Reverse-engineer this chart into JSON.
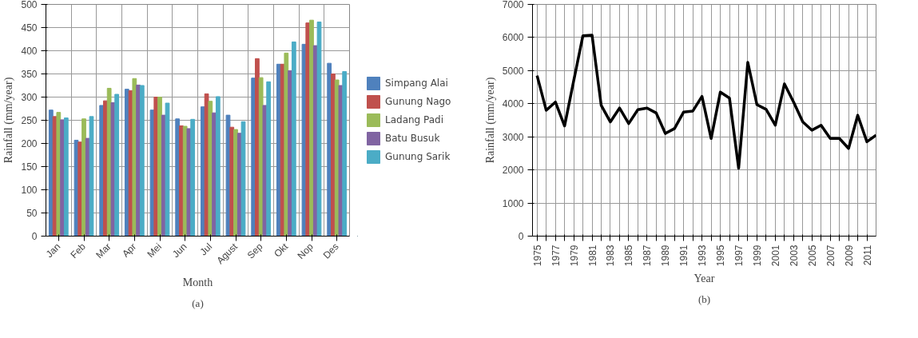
{
  "chart_data": [
    {
      "type": "bar",
      "xlabel": "Month",
      "ylabel": "Rainfall (mm/year)",
      "annotations": [
        "(a)"
      ],
      "categories": [
        "Jan",
        "Feb",
        "Mar",
        "Apr",
        "Mei",
        "Jun",
        "Jul",
        "Agust",
        "Sep",
        "Okt",
        "Nop",
        "Des"
      ],
      "series": [
        {
          "name": "Simpang Alai",
          "color": "#4f81bd",
          "values": [
            272,
            207,
            282,
            317,
            272,
            253,
            279,
            261,
            341,
            371,
            414,
            373
          ]
        },
        {
          "name": "Gunung Nago",
          "color": "#c0504d",
          "values": [
            258,
            203,
            292,
            314,
            300,
            238,
            307,
            235,
            383,
            371,
            460,
            350
          ]
        },
        {
          "name": "Ladang Padi",
          "color": "#9bbb59",
          "values": [
            267,
            253,
            319,
            340,
            300,
            237,
            291,
            230,
            342,
            395,
            466,
            337
          ]
        },
        {
          "name": "Batu Busuk",
          "color": "#8064a2",
          "values": [
            251,
            211,
            288,
            326,
            261,
            232,
            266,
            222,
            282,
            357,
            411,
            325
          ]
        },
        {
          "name": "Gunung Sarik",
          "color": "#4bacc6",
          "values": [
            255,
            258,
            306,
            325,
            287,
            252,
            301,
            247,
            333,
            419,
            462,
            355
          ]
        }
      ],
      "ylim": [
        0,
        500
      ],
      "yticks": [
        0,
        50,
        100,
        150,
        200,
        250,
        300,
        350,
        400,
        450,
        500
      ],
      "grid": true,
      "legend": "right"
    },
    {
      "type": "line",
      "xlabel": "Year",
      "ylabel": "Rainfall (mm/year)",
      "annotations": [
        "(b)"
      ],
      "x": [
        1975,
        1976,
        1977,
        1978,
        1979,
        1980,
        1981,
        1982,
        1983,
        1984,
        1985,
        1986,
        1987,
        1988,
        1989,
        1990,
        1991,
        1992,
        1993,
        1994,
        1995,
        1996,
        1997,
        1998,
        1999,
        2000,
        2001,
        2002,
        2003,
        2004,
        2005,
        2006,
        2007,
        2008,
        2009,
        2010,
        2011,
        2012
      ],
      "series": [
        {
          "color": "#000000",
          "values": [
            4850,
            3800,
            4050,
            3330,
            4700,
            6050,
            6070,
            3950,
            3450,
            3870,
            3400,
            3820,
            3870,
            3720,
            3100,
            3250,
            3750,
            3780,
            4220,
            2950,
            4350,
            4170,
            2050,
            5250,
            3970,
            3830,
            3350,
            4600,
            4050,
            3450,
            3200,
            3350,
            2950,
            2950,
            2650,
            3650,
            2850,
            3050
          ]
        }
      ],
      "xlim": [
        1974.5,
        2012
      ],
      "xticks": [
        1975,
        {
          "value": 1976,
          "label": null
        },
        1977,
        {
          "value": 1978,
          "label": null
        },
        1979,
        {
          "value": 1980,
          "label": null
        },
        1981,
        {
          "value": 1982,
          "label": null
        },
        1983,
        {
          "value": 1984,
          "label": null
        },
        1985,
        {
          "value": 1986,
          "label": null
        },
        1987,
        {
          "value": 1988,
          "label": null
        },
        1989,
        {
          "value": 1990,
          "label": null
        },
        1991,
        {
          "value": 1992,
          "label": null
        },
        1993,
        {
          "value": 1994,
          "label": null
        },
        1995,
        {
          "value": 1996,
          "label": null
        },
        1997,
        {
          "value": 1998,
          "label": null
        },
        1999,
        {
          "value": 2000,
          "label": null
        },
        2001,
        {
          "value": 2002,
          "label": null
        },
        2003,
        {
          "value": 2004,
          "label": null
        },
        2005,
        {
          "value": 2006,
          "label": null
        },
        2007,
        {
          "value": 2008,
          "label": null
        },
        2009,
        {
          "value": 2010,
          "label": null
        },
        2011
      ],
      "ylim": [
        0,
        7000
      ],
      "yticks": [
        0,
        1000,
        2000,
        3000,
        4000,
        5000,
        6000,
        7000
      ],
      "grid": true,
      "legend": false,
      "line_style": "solid"
    }
  ]
}
